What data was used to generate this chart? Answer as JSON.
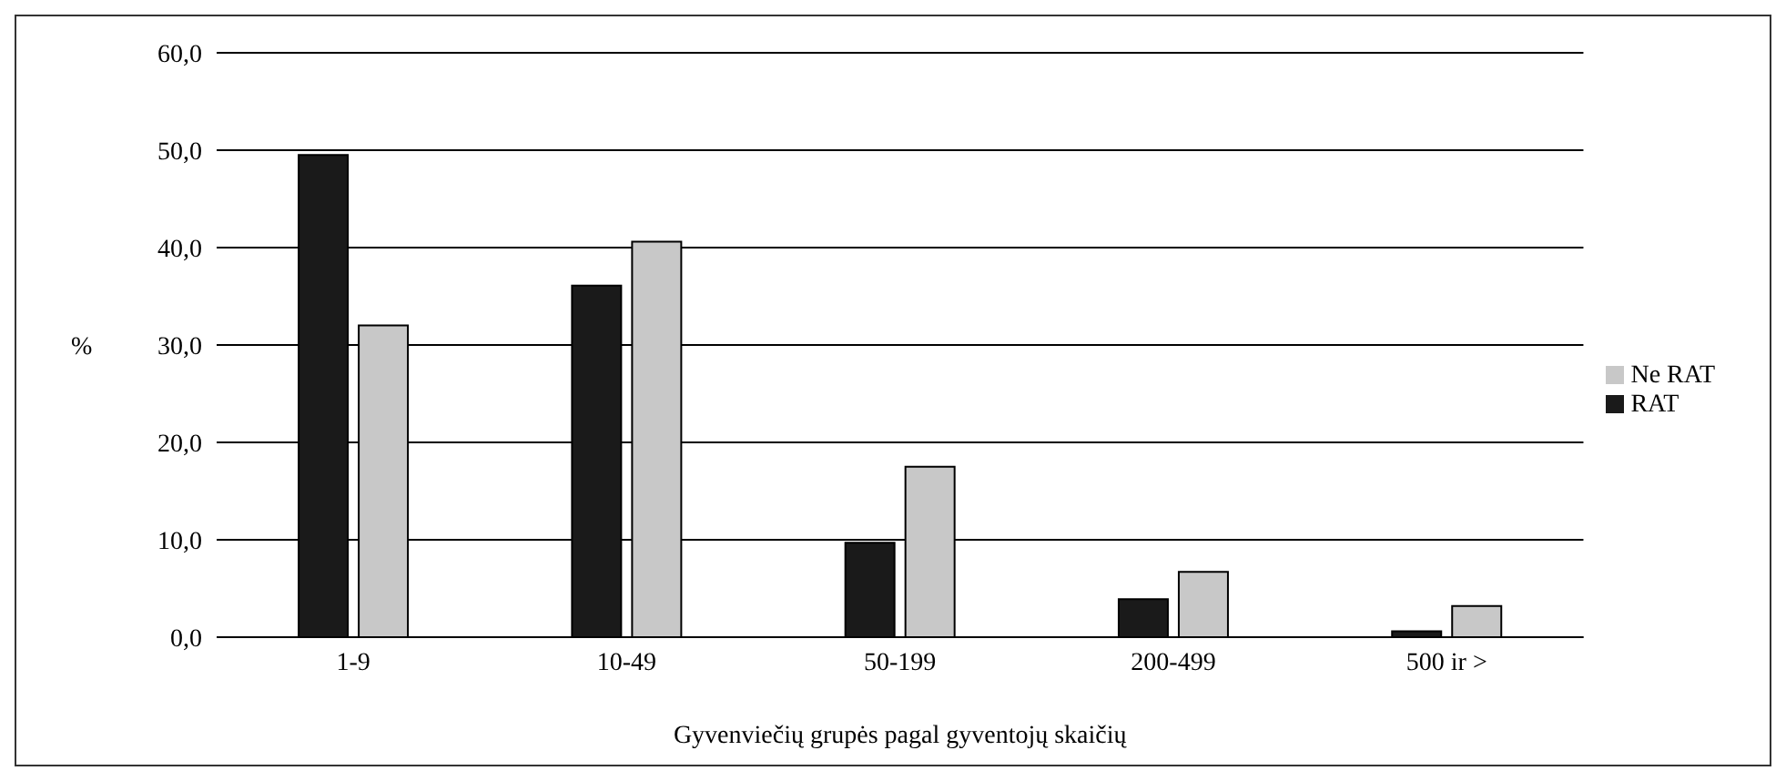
{
  "chart_data": {
    "type": "bar",
    "xlabel": "Gyvenviečių grupės pagal gyventojų skaičių",
    "ylabel": "%",
    "categories": [
      "1-9",
      "10-49",
      "50-199",
      "200-499",
      "500 ir >"
    ],
    "series": [
      {
        "name": "RAT",
        "color": "#1a1a1a",
        "values": [
          49.5,
          36.1,
          9.7,
          3.9,
          0.6
        ]
      },
      {
        "name": "Ne RAT",
        "color": "#c8c8c8",
        "values": [
          32.0,
          40.6,
          17.5,
          6.7,
          3.2
        ]
      }
    ],
    "ylim": [
      0,
      60
    ],
    "yticks": [
      {
        "value": 0,
        "label": "0,0"
      },
      {
        "value": 10,
        "label": "10,0"
      },
      {
        "value": 20,
        "label": "20,0"
      },
      {
        "value": 30,
        "label": "30,0"
      },
      {
        "value": 40,
        "label": "40,0"
      },
      {
        "value": 50,
        "label": "50,0"
      },
      {
        "value": 60,
        "label": "60,0"
      }
    ],
    "grid": "y",
    "legend": "right"
  }
}
